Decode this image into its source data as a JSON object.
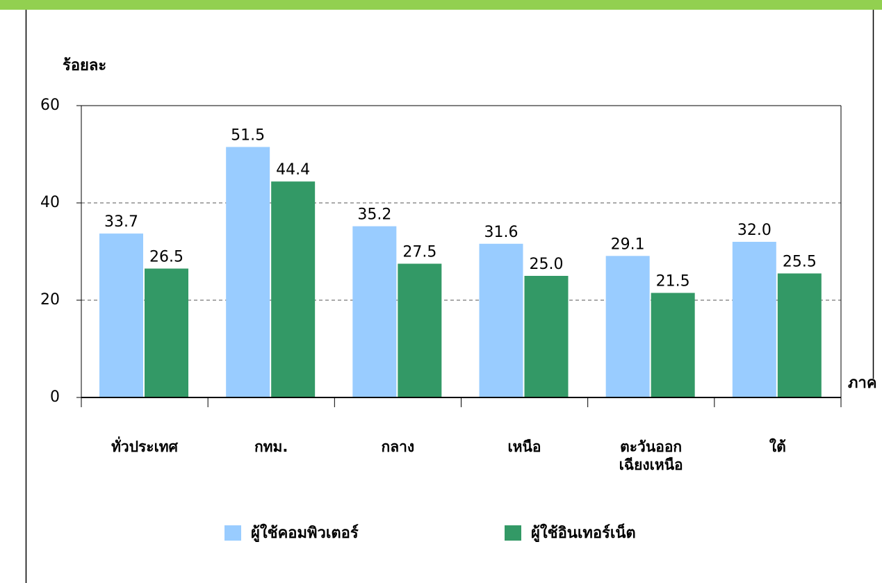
{
  "chart_data": {
    "type": "bar",
    "y_label": "ร้อยละ",
    "x_label": "ภาค",
    "categories": [
      "ทั่วประเทศ",
      "กทม.",
      "กลาง",
      "เหนือ",
      "ตะวันออก\nเฉียงเหนือ",
      "ใต้"
    ],
    "series": [
      {
        "name": "ผู้ใช้คอมพิวเตอร์",
        "color": "#99ccff",
        "values": [
          33.7,
          51.5,
          35.2,
          31.6,
          29.1,
          32.0
        ],
        "value_labels": [
          "33.7",
          "51.5",
          "35.2",
          "31.6",
          "29.1",
          "32.0"
        ]
      },
      {
        "name": "ผู้ใช้อินเทอร์เน็ต",
        "color": "#339966",
        "values": [
          26.5,
          44.4,
          27.5,
          25.0,
          21.5,
          25.5
        ],
        "value_labels": [
          "26.5",
          "44.4",
          "27.5",
          "25.0",
          "21.5",
          "25.5"
        ]
      }
    ],
    "ylim": [
      0,
      60
    ],
    "yticks": [
      0,
      20,
      40,
      60
    ],
    "grid": true
  }
}
